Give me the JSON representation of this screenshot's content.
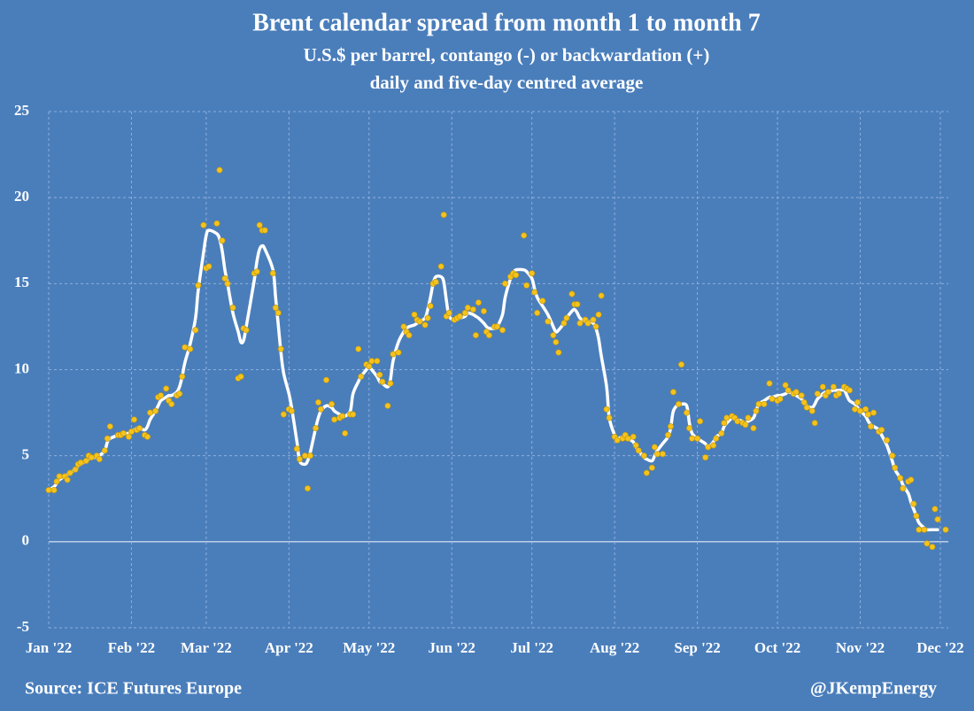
{
  "chart_data": {
    "type": "scatter-line",
    "title": "Brent calendar spread from month 1 to month 7",
    "subtitle": [
      "U.S.$ per barrel, contango (-) or backwardation (+)",
      "daily and five-day centred average"
    ],
    "source": "Source: ICE Futures Europe",
    "credit": "@JKempEnergy",
    "background": "#4a7ebb",
    "grid": true,
    "xlim": [
      0,
      337
    ],
    "xticks": [
      {
        "value": 0,
        "label": "Jan '22"
      },
      {
        "value": 31,
        "label": "Feb '22"
      },
      {
        "value": 59,
        "label": "Mar '22"
      },
      {
        "value": 90,
        "label": "Apr '22"
      },
      {
        "value": 120,
        "label": "May '22"
      },
      {
        "value": 151,
        "label": "Jun '22"
      },
      {
        "value": 181,
        "label": "Jul '22"
      },
      {
        "value": 212,
        "label": "Aug '22"
      },
      {
        "value": 243,
        "label": "Sep '22"
      },
      {
        "value": 273,
        "label": "Oct '22"
      },
      {
        "value": 304,
        "label": "Nov '22"
      },
      {
        "value": 334,
        "label": "Dec '22"
      }
    ],
    "ylim": [
      -5,
      25
    ],
    "yticks": [
      -5,
      0,
      5,
      10,
      15,
      20,
      25
    ],
    "x": [
      0,
      2,
      3,
      4,
      6,
      7,
      8,
      10,
      11,
      12,
      14,
      15,
      16,
      18,
      19,
      21,
      22,
      23,
      26,
      27,
      28,
      30,
      31,
      32,
      33,
      34,
      36,
      37,
      38,
      40,
      41,
      42,
      44,
      45,
      46,
      48,
      49,
      50,
      51,
      53,
      55,
      56,
      58,
      59,
      60,
      63,
      64,
      65,
      66,
      67,
      69,
      71,
      72,
      73,
      74,
      77,
      78,
      79,
      80,
      81,
      84,
      85,
      86,
      87,
      88,
      90,
      91,
      93,
      94,
      96,
      97,
      98,
      100,
      101,
      102,
      104,
      106,
      107,
      109,
      110,
      111,
      113,
      114,
      116,
      117,
      119,
      120,
      121,
      123,
      124,
      125,
      127,
      128,
      129,
      131,
      133,
      134,
      135,
      137,
      138,
      139,
      141,
      142,
      143,
      144,
      145,
      147,
      148,
      149,
      150,
      152,
      153,
      154,
      156,
      157,
      159,
      160,
      161,
      163,
      164,
      165,
      167,
      168,
      170,
      171,
      173,
      174,
      175,
      178,
      179,
      181,
      182,
      183,
      185,
      187,
      189,
      190,
      191,
      193,
      194,
      196,
      197,
      198,
      199,
      201,
      202,
      204,
      205,
      206,
      207,
      209,
      210,
      212,
      213,
      215,
      216,
      217,
      219,
      220,
      221,
      223,
      224,
      226,
      227,
      228,
      230,
      232,
      233,
      234,
      236,
      237,
      239,
      240,
      241,
      243,
      244,
      246,
      247,
      249,
      250,
      252,
      253,
      254,
      256,
      257,
      258,
      260,
      261,
      262,
      264,
      265,
      266,
      268,
      270,
      271,
      273,
      274,
      276,
      277,
      279,
      280,
      282,
      283,
      284,
      286,
      287,
      288,
      290,
      291,
      292,
      294,
      295,
      296,
      298,
      299,
      300,
      302,
      303,
      304,
      306,
      307,
      308,
      309,
      311,
      312,
      314,
      316,
      317,
      319,
      320,
      322,
      323,
      324,
      325,
      326,
      328,
      329,
      331,
      332,
      333,
      336
    ],
    "series": [
      {
        "kind": "scatter",
        "color": "#f6c21c",
        "values": [
          3.0,
          3.0,
          3.5,
          3.8,
          3.8,
          3.6,
          4.0,
          4.2,
          4.5,
          4.6,
          4.7,
          5.0,
          4.9,
          5.0,
          4.8,
          5.3,
          6.0,
          6.7,
          6.2,
          6.2,
          6.3,
          6.1,
          6.4,
          7.1,
          6.5,
          6.6,
          6.2,
          6.1,
          7.5,
          7.6,
          8.4,
          8.5,
          8.9,
          8.2,
          8.0,
          8.5,
          8.6,
          9.6,
          11.3,
          11.2,
          12.3,
          14.9,
          18.4,
          15.9,
          16.0,
          18.5,
          21.6,
          17.5,
          15.3,
          15.0,
          13.6,
          9.5,
          9.6,
          12.4,
          12.3,
          15.6,
          15.7,
          18.4,
          18.1,
          18.1,
          15.6,
          13.6,
          13.3,
          11.2,
          7.4,
          7.7,
          7.6,
          5.4,
          4.8,
          5.0,
          3.1,
          5.0,
          6.6,
          8.1,
          7.7,
          9.4,
          8.0,
          7.1,
          7.2,
          7.3,
          6.3,
          7.4,
          7.4,
          11.2,
          9.6,
          10.3,
          10.2,
          10.5,
          10.5,
          9.7,
          9.3,
          7.9,
          9.2,
          10.9,
          11.0,
          12.5,
          12.2,
          12.0,
          13.2,
          12.9,
          12.8,
          12.6,
          13.0,
          13.7,
          15.0,
          15.1,
          16.0,
          19.0,
          13.1,
          13.3,
          12.9,
          13.0,
          13.1,
          13.3,
          13.6,
          13.5,
          12.0,
          13.9,
          13.4,
          12.2,
          12.0,
          12.5,
          12.5,
          12.3,
          15.0,
          15.4,
          15.6,
          15.5,
          17.8,
          14.9,
          15.6,
          14.5,
          13.3,
          14.0,
          12.8,
          12.0,
          11.6,
          11.0,
          12.7,
          13.0,
          14.4,
          13.8,
          13.8,
          12.7,
          12.9,
          12.7,
          12.9,
          12.5,
          13.2,
          14.3,
          7.7,
          7.2,
          6.1,
          5.9,
          6.0,
          6.2,
          6.0,
          6.1,
          5.6,
          5.3,
          5.0,
          4.0,
          4.3,
          5.5,
          5.1,
          5.1,
          6.2,
          6.7,
          8.7,
          8.0,
          10.3,
          7.5,
          6.6,
          6.0,
          6.0,
          7.0,
          4.9,
          5.5,
          5.6,
          6.0,
          6.3,
          6.9,
          7.2,
          7.3,
          7.2,
          7.0,
          6.9,
          6.8,
          7.2,
          6.6,
          7.6,
          8.0,
          8.0,
          9.2,
          8.3,
          8.2,
          8.3,
          9.1,
          8.8,
          8.6,
          8.7,
          8.5,
          8.1,
          7.8,
          7.6,
          6.9,
          8.6,
          9.0,
          8.5,
          8.7,
          9.0,
          8.5,
          8.6,
          9.0,
          8.9,
          8.8,
          7.7,
          8.1,
          7.6,
          7.7,
          7.4,
          6.7,
          7.5,
          6.4,
          6.5,
          5.9,
          5.0,
          4.3,
          3.7,
          3.1,
          3.5,
          3.6,
          2.2,
          1.5,
          0.7,
          0.7,
          -0.1,
          -0.3,
          1.9,
          1.3,
          0.7
        ]
      },
      {
        "kind": "line",
        "color": "#ffffff",
        "values": [
          3.0,
          3.2,
          3.4,
          3.6,
          3.8,
          3.9,
          4.0,
          4.2,
          4.4,
          4.5,
          4.7,
          4.8,
          4.9,
          4.9,
          5.0,
          5.3,
          5.8,
          6.0,
          6.2,
          6.3,
          6.3,
          6.3,
          6.4,
          6.5,
          6.6,
          6.6,
          6.5,
          6.7,
          7.1,
          7.6,
          7.9,
          8.2,
          8.4,
          8.5,
          8.5,
          8.7,
          9.0,
          9.6,
          10.4,
          11.5,
          13.0,
          14.6,
          16.8,
          17.8,
          18.1,
          17.9,
          17.6,
          16.9,
          15.8,
          15.0,
          13.3,
          12.2,
          11.6,
          11.7,
          12.5,
          15.2,
          16.3,
          17.0,
          17.2,
          17.0,
          15.8,
          14.2,
          12.6,
          11.0,
          9.8,
          8.6,
          7.8,
          5.8,
          4.7,
          4.5,
          4.7,
          5.2,
          6.6,
          7.2,
          7.6,
          7.9,
          7.8,
          7.6,
          7.4,
          7.3,
          7.3,
          7.6,
          8.6,
          9.3,
          9.6,
          10.0,
          10.2,
          10.0,
          9.6,
          9.3,
          9.2,
          9.0,
          9.4,
          10.5,
          11.6,
          12.2,
          12.4,
          12.5,
          12.6,
          12.7,
          12.8,
          13.0,
          13.5,
          14.2,
          15.0,
          15.4,
          15.4,
          15.1,
          14.0,
          13.1,
          12.9,
          12.9,
          13.0,
          13.1,
          13.3,
          13.2,
          13.1,
          13.0,
          12.7,
          12.5,
          12.4,
          12.4,
          12.5,
          13.2,
          14.2,
          15.3,
          15.6,
          15.8,
          15.8,
          15.7,
          15.3,
          14.7,
          14.2,
          13.7,
          13.2,
          12.5,
          12.2,
          12.3,
          12.7,
          13.0,
          13.4,
          13.5,
          13.3,
          13.0,
          12.8,
          12.8,
          12.7,
          12.4,
          11.8,
          10.8,
          9.0,
          7.2,
          6.2,
          6.0,
          6.1,
          6.1,
          6.0,
          5.8,
          5.5,
          5.3,
          4.9,
          4.8,
          4.7,
          5.0,
          5.3,
          5.7,
          6.1,
          6.6,
          7.6,
          8.0,
          8.0,
          7.9,
          6.9,
          6.3,
          6.0,
          5.9,
          5.7,
          5.5,
          5.8,
          6.1,
          6.3,
          6.7,
          6.9,
          7.2,
          7.2,
          7.1,
          7.0,
          6.9,
          7.0,
          7.2,
          7.6,
          8.0,
          8.2,
          8.4,
          8.4,
          8.5,
          8.5,
          8.6,
          8.7,
          8.6,
          8.5,
          8.3,
          8.1,
          7.9,
          7.8,
          8.0,
          8.3,
          8.6,
          8.7,
          8.7,
          8.8,
          8.8,
          8.8,
          8.8,
          8.5,
          8.2,
          8.0,
          7.8,
          7.6,
          7.3,
          7.0,
          6.8,
          6.7,
          6.5,
          6.2,
          5.6,
          4.7,
          4.2,
          3.7,
          3.3,
          2.8,
          2.3,
          1.9,
          1.5,
          1.1,
          0.8,
          0.7,
          0.7,
          0.7,
          0.7,
          null
        ]
      }
    ]
  }
}
